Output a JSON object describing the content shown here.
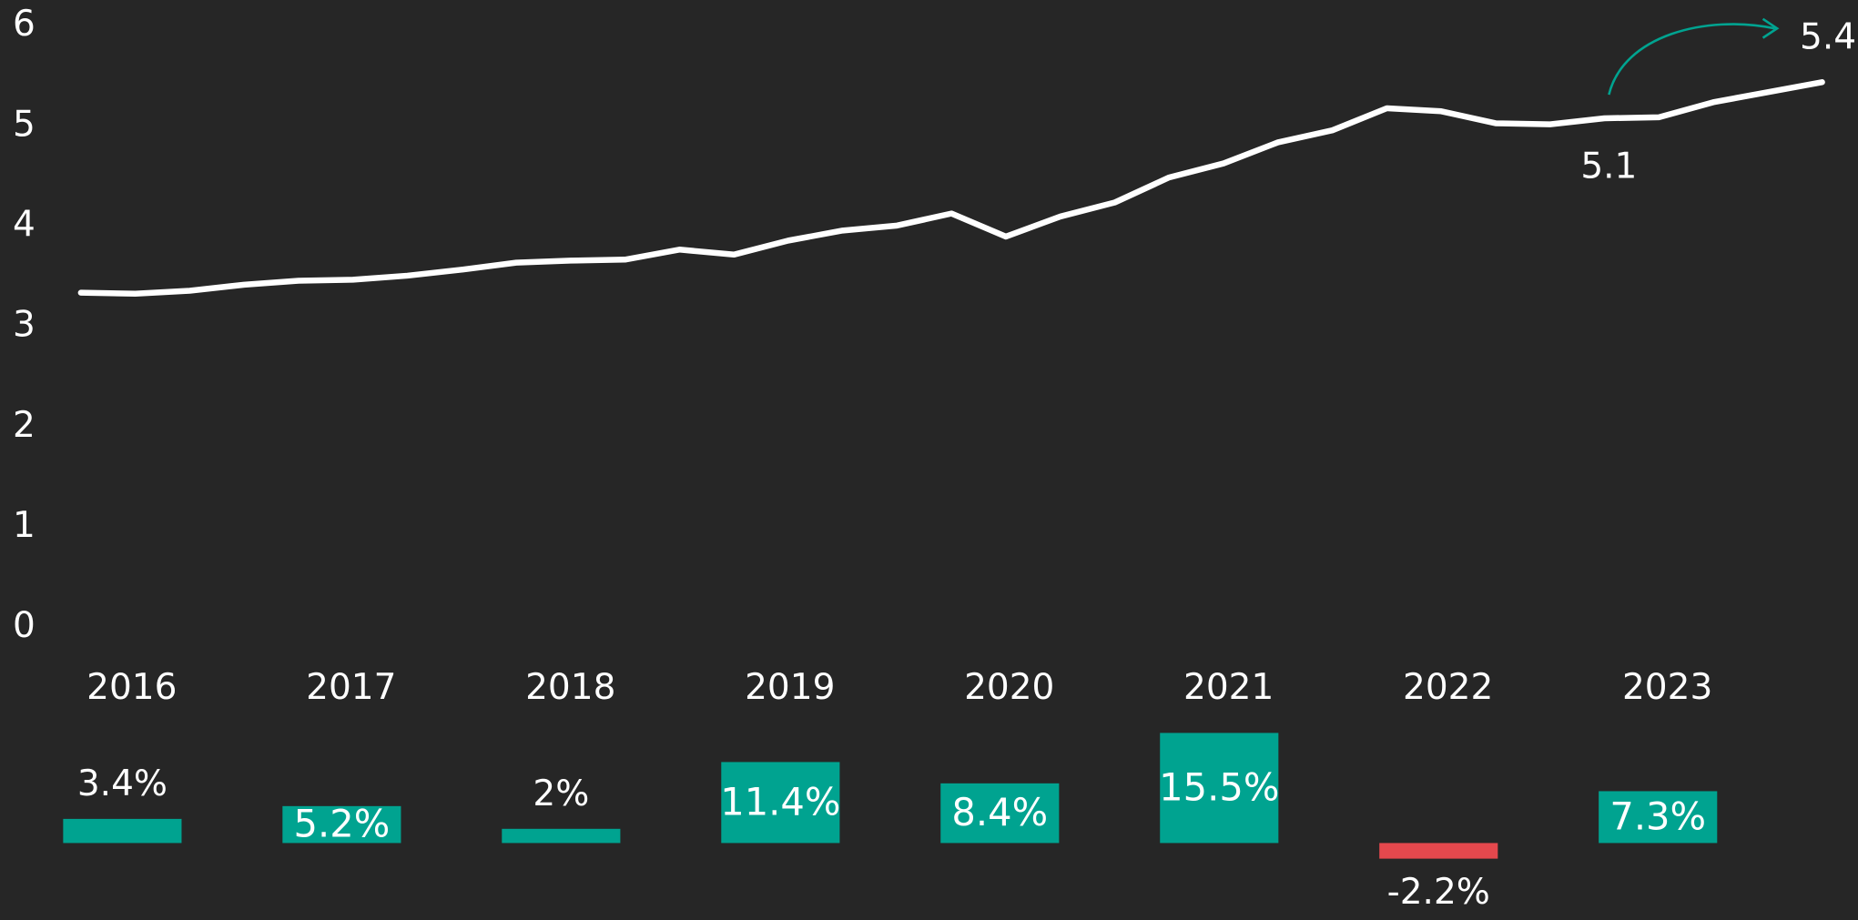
{
  "chart_data": [
    {
      "type": "line",
      "color": "#ffffff",
      "values": [
        3.34,
        3.33,
        3.36,
        3.42,
        3.46,
        3.47,
        3.51,
        3.57,
        3.64,
        3.66,
        3.67,
        3.77,
        3.72,
        3.86,
        3.96,
        4.01,
        4.13,
        3.9,
        4.1,
        4.24,
        4.49,
        4.63,
        4.84,
        4.96,
        5.18,
        5.15,
        5.03,
        5.02,
        5.08,
        5.09,
        5.24,
        5.34,
        5.44
      ],
      "ylim": [
        0,
        6
      ],
      "yticks": [
        0,
        1,
        2,
        3,
        4,
        5,
        6
      ],
      "annotations": [
        "5.1",
        "5.4"
      ]
    },
    {
      "type": "bar",
      "color": "#00a390",
      "negative_color": "#e5484d",
      "categories": [
        "2016",
        "2017",
        "2018",
        "2019",
        "2020",
        "2021",
        "2022",
        "2023"
      ],
      "values": [
        3.4,
        5.2,
        2,
        11.4,
        8.4,
        15.5,
        -2.2,
        7.3
      ],
      "value_labels": [
        "3.4%",
        "5.2%",
        "2%",
        "11.4%",
        "8.4%",
        "15.5%",
        "-2.2%",
        "7.3%"
      ]
    }
  ]
}
